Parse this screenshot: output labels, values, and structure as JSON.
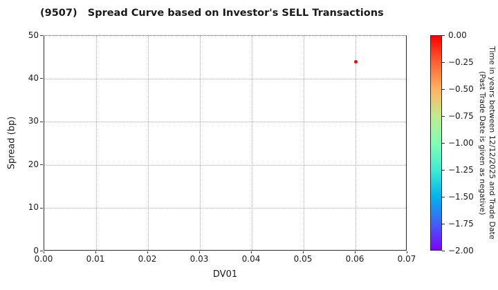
{
  "chart_data": {
    "type": "scatter",
    "title": "(9507)   Spread Curve based on Investor's SELL Transactions",
    "xlabel": "DV01",
    "ylabel": "Spread (bp)",
    "xlim": [
      0.0,
      0.07
    ],
    "ylim": [
      0,
      50
    ],
    "xtick_labels": [
      "0.00",
      "0.01",
      "0.02",
      "0.03",
      "0.04",
      "0.05",
      "0.06",
      "0.07"
    ],
    "ytick_labels": [
      "0",
      "10",
      "20",
      "30",
      "40",
      "50"
    ],
    "grid": "dotted",
    "grid_color": "#a8a8a8",
    "spine_color": "#2b2b2b",
    "background_color": "#ffffff",
    "points": [
      {
        "dv01": 0.06,
        "spread": 44,
        "time_years": 0.0,
        "color": "#ff0000"
      }
    ],
    "colorbar": {
      "label_line1": "Time in years between 12/12/2025 and Trade Date",
      "label_line2": "(Past Trade Date is given as negative)",
      "vmax": 0.0,
      "vmin": -2.0,
      "tick_labels": [
        "0.00",
        "−0.25",
        "−0.50",
        "−0.75",
        "−1.00",
        "−1.25",
        "−1.50",
        "−1.75",
        "−2.00"
      ],
      "gradient_top_to_bottom": [
        "#ff0000",
        "#ff6232",
        "#ffb462",
        "#bfec8e",
        "#80ffb4",
        "#40ecd4",
        "#00b4ec",
        "#4062fa",
        "#8000ff"
      ]
    }
  }
}
